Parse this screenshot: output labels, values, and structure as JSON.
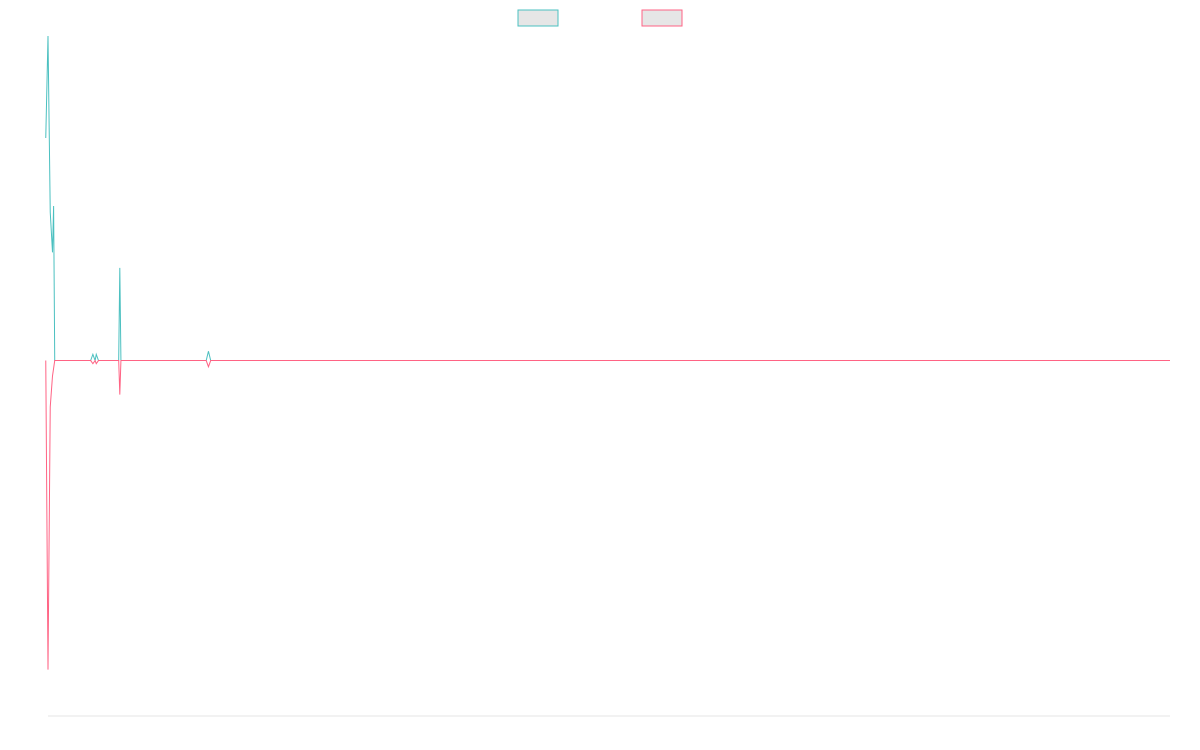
{
  "chart_data": {
    "type": "line",
    "title": "",
    "xlabel": "",
    "ylabel": "",
    "grid": false,
    "legend": "top-center",
    "xlim": [
      0,
      1000
    ],
    "ylim": [
      -1.15,
      1.05
    ],
    "series": [
      {
        "color": "#4bc0c0",
        "fill": "#e6e6e6",
        "points": [
          [
            -2,
            0.72
          ],
          [
            0,
            1.05
          ],
          [
            2,
            0.48
          ],
          [
            4,
            0.35
          ],
          [
            5,
            0.5
          ],
          [
            6,
            0.0
          ],
          [
            8,
            0.0
          ],
          [
            38,
            0.0
          ],
          [
            40,
            0.02
          ],
          [
            42,
            0.0
          ],
          [
            43,
            0.02
          ],
          [
            45,
            0.0
          ],
          [
            63,
            0.0
          ],
          [
            64,
            0.3
          ],
          [
            65,
            0.0
          ],
          [
            141,
            0.0
          ],
          [
            143,
            0.03
          ],
          [
            145,
            0.0
          ],
          [
            1000,
            0.0
          ]
        ]
      },
      {
        "color": "#ff6384",
        "fill": "#e6e6e6",
        "points": [
          [
            -2,
            0.0
          ],
          [
            0,
            -1.0
          ],
          [
            2,
            -0.15
          ],
          [
            4,
            -0.05
          ],
          [
            6,
            0.0
          ],
          [
            38,
            0.0
          ],
          [
            40,
            -0.01
          ],
          [
            42,
            0.0
          ],
          [
            43,
            -0.01
          ],
          [
            45,
            0.0
          ],
          [
            63,
            0.0
          ],
          [
            64,
            -0.11
          ],
          [
            65,
            0.0
          ],
          [
            141,
            0.0
          ],
          [
            143,
            -0.02
          ],
          [
            145,
            0.0
          ],
          [
            1000,
            0.0
          ]
        ]
      }
    ]
  }
}
